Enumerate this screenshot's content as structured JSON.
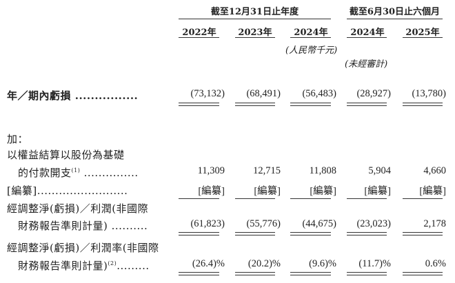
{
  "header": {
    "group_annual": "截至12月31日止年度",
    "group_interim": "截至6月30日止六個月",
    "years": [
      "2022年",
      "2023年",
      "2024年",
      "2024年",
      "2025年"
    ],
    "currency_note": "(人民幣千元)",
    "unaudited_note": "(未經審計)"
  },
  "rows": [
    {
      "label": "年／期內虧損 ................",
      "values": [
        "(73,132)",
        "(68,491)",
        "(56,483)",
        "(28,927)",
        "(13,780)"
      ]
    },
    {
      "label": "加："
    },
    {
      "label": "以權益結算以股份為基礎"
    },
    {
      "label": "的付款開支",
      "footnote": "(1)",
      "dots": " ...............",
      "values": [
        "11,309",
        "12,715",
        "11,808",
        "5,904",
        "4,660"
      ]
    },
    {
      "label": "[編纂].........................",
      "values": [
        "[編纂]",
        "[編纂]",
        "[編纂]",
        "[編纂]",
        "[編纂]"
      ]
    },
    {
      "label": "經調整淨(虧損)／利潤(非國際"
    },
    {
      "label": "財務報告準則計量) ..........",
      "values": [
        "(61,823)",
        "(55,776)",
        "(44,675)",
        "(23,023)",
        "2,178"
      ]
    },
    {
      "label": "經調整淨(虧損)／利潤率(非國際"
    },
    {
      "label": "財務報告準則計量)",
      "footnote": "(2)",
      "dots": ".........",
      "values": [
        "(26.4)%",
        "(20.2)%",
        "(9.6)%",
        "(11.7)%",
        "0.6%"
      ]
    }
  ]
}
